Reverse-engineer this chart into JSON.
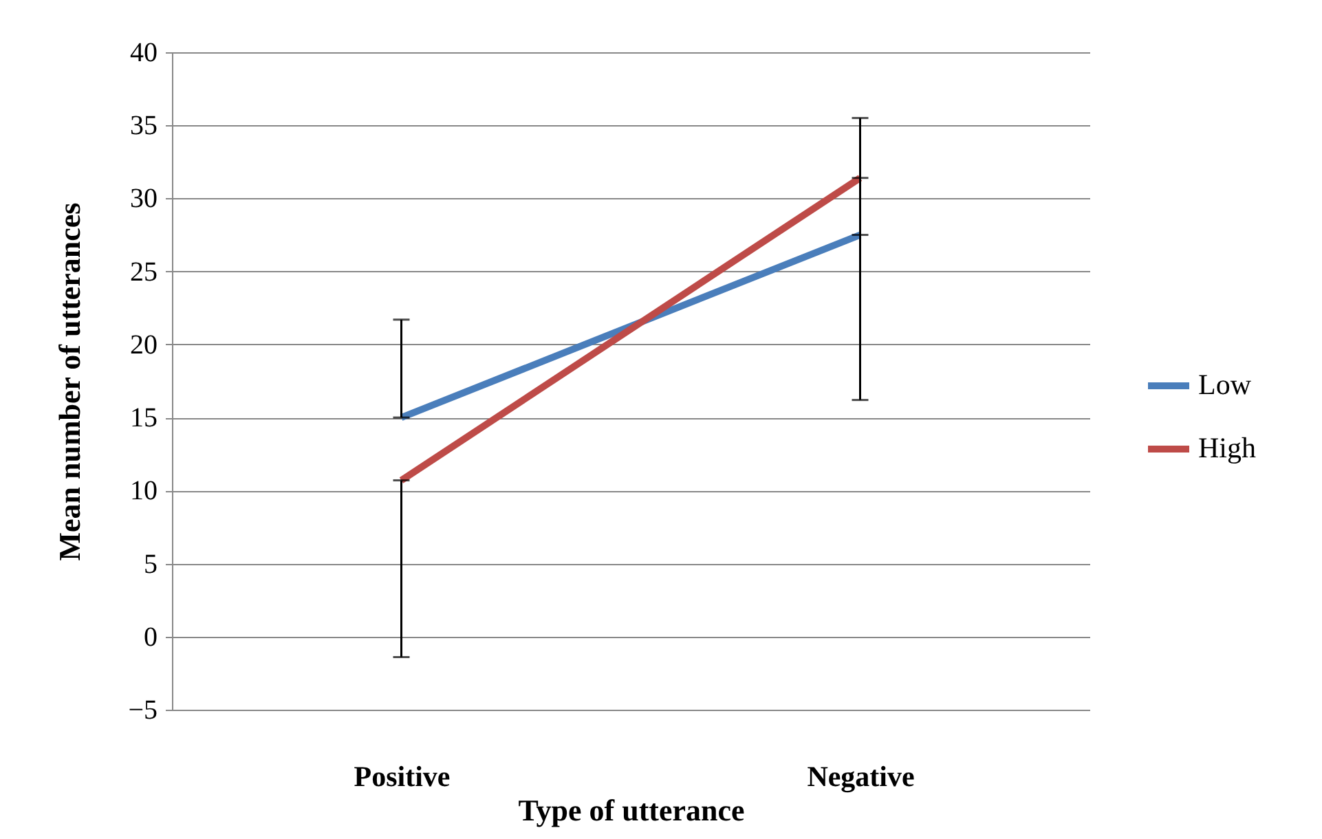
{
  "chart_data": {
    "type": "line",
    "xlabel": "Type of utterance",
    "ylabel": "Mean number of utterances",
    "categories": [
      "Positive",
      "Negative"
    ],
    "series": [
      {
        "name": "Low",
        "color": "#4a7ebb",
        "values": [
          15,
          27.5
        ],
        "errors": [
          [
            15,
            21.7
          ],
          [
            27.5,
            35.5
          ]
        ]
      },
      {
        "name": "High",
        "color": "#be4b48",
        "values": [
          10.7,
          31.4
        ],
        "errors": [
          [
            -1.4,
            10.7
          ],
          [
            16.2,
            31.4
          ]
        ]
      }
    ],
    "ylim": [
      -5,
      40
    ],
    "yticks": [
      -5,
      0,
      5,
      10,
      15,
      20,
      25,
      30,
      35,
      40
    ],
    "grid": "y",
    "legend": "right",
    "marker": "none",
    "line_style": "solid"
  }
}
